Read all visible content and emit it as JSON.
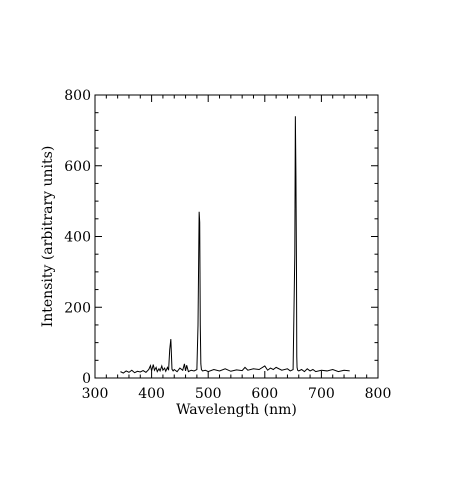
{
  "chart_data": {
    "type": "line",
    "title": "",
    "xlabel": "Wavelength (nm)",
    "ylabel": "Intensity (arbitrary units)",
    "xlim": [
      300,
      800
    ],
    "ylim": [
      0,
      800
    ],
    "xticks": [
      300,
      400,
      500,
      600,
      700,
      800
    ],
    "yticks": [
      0,
      200,
      400,
      600,
      800
    ],
    "grid": false,
    "legend": "none",
    "line_color": "#000000",
    "series": [
      {
        "x": [
          345,
          350,
          355,
          360,
          365,
          370,
          375,
          380,
          385,
          390,
          395,
          398,
          400,
          403,
          405,
          408,
          410,
          413,
          415,
          418,
          420,
          423,
          425,
          428,
          430,
          432,
          434,
          436,
          438,
          440,
          445,
          450,
          455,
          458,
          460,
          462,
          465,
          470,
          475,
          480,
          482,
          484,
          485,
          486,
          487,
          488,
          490,
          495,
          500,
          510,
          520,
          530,
          540,
          550,
          560,
          565,
          570,
          580,
          590,
          600,
          605,
          610,
          615,
          620,
          630,
          640,
          645,
          650,
          653,
          654,
          655,
          656,
          656.5,
          657,
          658,
          660,
          665,
          670,
          675,
          680,
          685,
          690,
          700,
          710,
          720,
          730,
          740,
          750
        ],
        "y": [
          18,
          14,
          20,
          16,
          22,
          15,
          19,
          17,
          21,
          16,
          24,
          35,
          20,
          38,
          22,
          30,
          18,
          26,
          20,
          34,
          22,
          28,
          19,
          30,
          22,
          80,
          110,
          25,
          20,
          24,
          18,
          28,
          22,
          40,
          20,
          36,
          18,
          22,
          20,
          24,
          150,
          470,
          440,
          150,
          40,
          24,
          20,
          22,
          18,
          24,
          20,
          26,
          19,
          23,
          21,
          30,
          22,
          26,
          24,
          34,
          22,
          28,
          24,
          30,
          22,
          26,
          20,
          24,
          350,
          740,
          570,
          300,
          60,
          30,
          22,
          20,
          24,
          18,
          26,
          20,
          24,
          18,
          22,
          20,
          24,
          18,
          22,
          20
        ]
      }
    ]
  }
}
